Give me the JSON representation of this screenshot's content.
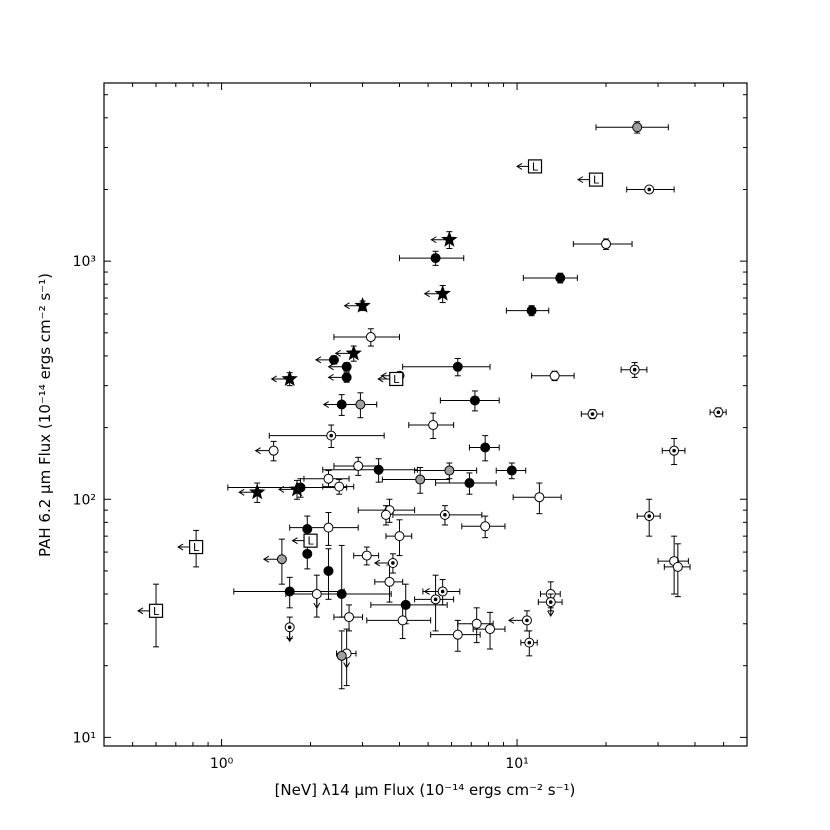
{
  "chart_data": {
    "type": "scatter",
    "xlabel": "[NeV] λ14 μm Flux (10⁻¹⁴ ergs cm⁻² s⁻¹)",
    "ylabel": "PAH 6.2 μm Flux (10⁻¹⁴ ergs cm⁻² s⁻¹)",
    "xscale": "log",
    "yscale": "log",
    "xlim": [
      0.4,
      60
    ],
    "ylim": [
      9.2,
      5600
    ],
    "x_tick_labels": [
      {
        "value": 1,
        "label": "10⁰"
      },
      {
        "value": 10,
        "label": "10¹"
      }
    ],
    "y_tick_labels": [
      {
        "value": 10,
        "label": "10¹"
      },
      {
        "value": 100,
        "label": "10²"
      },
      {
        "value": 1000,
        "label": "10³"
      }
    ],
    "grid": false,
    "legend": "none",
    "series": [
      {
        "marker": "filled-circle",
        "points": [
          {
            "x": 5.3,
            "y": 1030,
            "xerr": [
              1.3,
              1.3
            ],
            "yerr": [
              70,
              70
            ]
          },
          {
            "x": 14.0,
            "y": 850,
            "xerr": [
              3.5,
              2.0
            ],
            "yerr": [
              40,
              40
            ]
          },
          {
            "x": 11.2,
            "y": 620,
            "xerr": [
              2.0,
              1.6
            ],
            "yerr": [
              30,
              30
            ]
          },
          {
            "x": 2.4,
            "y": 385,
            "xerr": [
              0.0,
              0.0
            ],
            "yerr": [
              15,
              15
            ],
            "xlimit": "upper"
          },
          {
            "x": 2.65,
            "y": 360,
            "xerr": [
              0.0,
              0.0
            ],
            "yerr": [
              15,
              15
            ],
            "xlimit": "upper"
          },
          {
            "x": 6.3,
            "y": 360,
            "xerr": [
              2.2,
              1.8
            ],
            "yerr": [
              30,
              30
            ]
          },
          {
            "x": 2.65,
            "y": 325,
            "xerr": [
              0.0,
              0.0
            ],
            "yerr": [
              15,
              15
            ],
            "xlimit": "upper"
          },
          {
            "x": 7.2,
            "y": 260,
            "xerr": [
              1.7,
              1.5
            ],
            "yerr": [
              25,
              25
            ]
          },
          {
            "x": 2.55,
            "y": 250,
            "xerr": [
              0.0,
              0.0
            ],
            "yerr": [
              25,
              25
            ],
            "xlimit": "upper"
          },
          {
            "x": 7.8,
            "y": 165,
            "xerr": [
              0.9,
              0.9
            ],
            "yerr": [
              20,
              20
            ]
          },
          {
            "x": 3.4,
            "y": 133,
            "xerr": [
              1.2,
              1.2
            ],
            "yerr": [
              15,
              15
            ]
          },
          {
            "x": 9.6,
            "y": 132,
            "xerr": [
              1.1,
              1.1
            ],
            "yerr": [
              10,
              10
            ]
          },
          {
            "x": 6.9,
            "y": 117,
            "xerr": [
              1.6,
              1.6
            ],
            "yerr": [
              12,
              12
            ]
          },
          {
            "x": 1.85,
            "y": 112,
            "xerr": [
              0.8,
              0.8
            ],
            "yerr": [
              10,
              10
            ]
          },
          {
            "x": 1.95,
            "y": 75,
            "xerr": [
              0.0,
              0.0
            ],
            "yerr": [
              10,
              10
            ]
          },
          {
            "x": 1.95,
            "y": 59,
            "xerr": [
              0.0,
              0.0
            ],
            "yerr": [
              8,
              8
            ]
          },
          {
            "x": 2.3,
            "y": 50,
            "xerr": [
              0.0,
              0.0
            ],
            "yerr": [
              12,
              12
            ]
          },
          {
            "x": 1.7,
            "y": 41,
            "xerr": [
              0.6,
              0.9
            ],
            "yerr": [
              6,
              6
            ]
          },
          {
            "x": 2.55,
            "y": 40,
            "xerr": [
              0.9,
              1.2
            ],
            "yerr": [
              8,
              24
            ]
          },
          {
            "x": 4.2,
            "y": 36,
            "xerr": [
              1.0,
              1.6
            ],
            "yerr": [
              6,
              8
            ]
          }
        ]
      },
      {
        "marker": "open-circle",
        "points": [
          {
            "x": 20.0,
            "y": 1180,
            "xerr": [
              4.5,
              4.5
            ],
            "yerr": [
              60,
              60
            ]
          },
          {
            "x": 3.2,
            "y": 480,
            "xerr": [
              0.8,
              0.8
            ],
            "yerr": [
              40,
              40
            ]
          },
          {
            "x": 4.0,
            "y": 330,
            "xerr": [
              0.0,
              0.0
            ],
            "yerr": [
              10,
              10
            ],
            "xlimit": "upper"
          },
          {
            "x": 13.4,
            "y": 330,
            "xerr": [
              2.2,
              2.2
            ],
            "yerr": [
              15,
              15
            ]
          },
          {
            "x": 5.2,
            "y": 205,
            "xerr": [
              0.9,
              0.9
            ],
            "yerr": [
              25,
              25
            ]
          },
          {
            "x": 1.5,
            "y": 160,
            "xerr": [
              0.0,
              0.0
            ],
            "yerr": [
              15,
              15
            ],
            "xlimit": "upper"
          },
          {
            "x": 2.9,
            "y": 138,
            "xerr": [
              0.5,
              0.5
            ],
            "yerr": [
              12,
              12
            ]
          },
          {
            "x": 2.3,
            "y": 122,
            "xerr": [
              0.4,
              0.4
            ],
            "yerr": [
              10,
              10
            ]
          },
          {
            "x": 2.5,
            "y": 113,
            "xerr": [
              0.3,
              0.3
            ],
            "yerr": [
              8,
              8
            ]
          },
          {
            "x": 11.9,
            "y": 102,
            "xerr": [
              2.2,
              2.2
            ],
            "yerr": [
              15,
              15
            ]
          },
          {
            "x": 3.7,
            "y": 90,
            "xerr": [
              0.8,
              0.8
            ],
            "yerr": [
              10,
              10
            ]
          },
          {
            "x": 3.6,
            "y": 86,
            "xerr": [
              0.0,
              0.0
            ],
            "yerr": [
              8,
              8
            ]
          },
          {
            "x": 2.3,
            "y": 76,
            "xerr": [
              0.6,
              0.6
            ],
            "yerr": [
              12,
              12
            ]
          },
          {
            "x": 7.8,
            "y": 77,
            "xerr": [
              1.3,
              1.3
            ],
            "yerr": [
              8,
              8
            ]
          },
          {
            "x": 4.0,
            "y": 70,
            "xerr": [
              0.4,
              0.4
            ],
            "yerr": [
              12,
              12
            ]
          },
          {
            "x": 3.1,
            "y": 58,
            "xerr": [
              0.3,
              0.3
            ],
            "yerr": [
              5,
              5
            ]
          },
          {
            "x": 3.7,
            "y": 45,
            "xerr": [
              0.4,
              0.4
            ],
            "yerr": [
              8,
              8
            ]
          },
          {
            "x": 2.1,
            "y": 40,
            "xerr": [
              0.0,
              0.0
            ],
            "yerr": [
              8,
              8
            ],
            "ylimit": "upper"
          },
          {
            "x": 4.1,
            "y": 31,
            "xerr": [
              1.0,
              1.0
            ],
            "yerr": [
              5,
              5
            ]
          },
          {
            "x": 2.7,
            "y": 32,
            "xerr": [
              0.3,
              0.3
            ],
            "yerr": [
              4,
              4
            ]
          },
          {
            "x": 7.3,
            "y": 30,
            "xerr": [
              1.0,
              1.0
            ],
            "yerr": [
              5,
              5
            ]
          },
          {
            "x": 8.1,
            "y": 28.5,
            "xerr": [
              1.0,
              1.0
            ],
            "yerr": [
              5,
              5
            ]
          },
          {
            "x": 6.3,
            "y": 27,
            "xerr": [
              1.2,
              1.2
            ],
            "yerr": [
              4,
              4
            ]
          },
          {
            "x": 2.65,
            "y": 22.5,
            "xerr": [
              0.2,
              0.2
            ],
            "yerr": [
              6,
              6
            ],
            "ylimit": "upper"
          },
          {
            "x": 13.0,
            "y": 40,
            "xerr": [
              1.0,
              1.0
            ],
            "yerr": [
              5,
              5
            ],
            "ylimit": "upper"
          },
          {
            "x": 34.0,
            "y": 55,
            "xerr": [
              4.0,
              4.0
            ],
            "yerr": [
              15,
              15
            ]
          },
          {
            "x": 35.0,
            "y": 52,
            "xerr": [
              3.5,
              3.5
            ],
            "yerr": [
              13,
              13
            ]
          }
        ]
      },
      {
        "marker": "dotted-circle",
        "points": [
          {
            "x": 28.0,
            "y": 2000,
            "xerr": [
              4.5,
              6.0
            ],
            "yerr": [
              60,
              60
            ]
          },
          {
            "x": 25.0,
            "y": 350,
            "xerr": [
              2.5,
              2.5
            ],
            "yerr": [
              25,
              25
            ]
          },
          {
            "x": 18.0,
            "y": 228,
            "xerr": [
              1.5,
              1.5
            ],
            "yerr": [
              10,
              10
            ]
          },
          {
            "x": 48.0,
            "y": 232,
            "xerr": [
              3.0,
              3.0
            ],
            "yerr": [
              10,
              10
            ]
          },
          {
            "x": 34.0,
            "y": 160,
            "xerr": [
              3.0,
              3.0
            ],
            "yerr": [
              20,
              20
            ]
          },
          {
            "x": 2.35,
            "y": 185,
            "xerr": [
              0.9,
              1.2
            ],
            "yerr": [
              20,
              20
            ]
          },
          {
            "x": 28.0,
            "y": 85,
            "xerr": [
              2.5,
              2.5
            ],
            "yerr": [
              15,
              15
            ]
          },
          {
            "x": 5.7,
            "y": 86,
            "xerr": [
              1.9,
              1.9
            ],
            "yerr": [
              8,
              8
            ]
          },
          {
            "x": 3.8,
            "y": 54,
            "xerr": [
              0.0,
              0.0
            ],
            "yerr": [
              5,
              5
            ],
            "xlimit": "upper"
          },
          {
            "x": 5.6,
            "y": 41,
            "xerr": [
              0.8,
              0.8
            ],
            "yerr": [
              5,
              5
            ],
            "xlimit": "upper"
          },
          {
            "x": 5.3,
            "y": 38,
            "xerr": [
              0.8,
              0.8
            ],
            "yerr": [
              10,
              10
            ]
          },
          {
            "x": 1.7,
            "y": 29,
            "xerr": [
              0.0,
              0.0
            ],
            "yerr": [
              3,
              3
            ],
            "ylimit": "upper"
          },
          {
            "x": 10.8,
            "y": 31,
            "xerr": [
              0.0,
              0.0
            ],
            "yerr": [
              3,
              3
            ],
            "xlimit": "upper"
          },
          {
            "x": 11.0,
            "y": 25,
            "xerr": [
              0.7,
              0.7
            ],
            "yerr": [
              3,
              3
            ]
          },
          {
            "x": 13.0,
            "y": 37,
            "xerr": [
              1.2,
              1.2
            ],
            "yerr": [
              3,
              3
            ],
            "ylimit": "upper"
          }
        ]
      },
      {
        "marker": "gray-circle",
        "points": [
          {
            "x": 25.5,
            "y": 3650,
            "xerr": [
              7.0,
              7.0
            ],
            "yerr": [
              200,
              200
            ]
          },
          {
            "x": 2.95,
            "y": 250,
            "xerr": [
              0.4,
              0.4
            ],
            "yerr": [
              30,
              30
            ]
          },
          {
            "x": 4.7,
            "y": 121,
            "xerr": [
              1.2,
              1.2
            ],
            "yerr": [
              15,
              15
            ]
          },
          {
            "x": 5.9,
            "y": 132,
            "xerr": [
              1.4,
              1.4
            ],
            "yerr": [
              10,
              10
            ]
          },
          {
            "x": 1.6,
            "y": 56,
            "xerr": [
              0.0,
              0.0
            ],
            "yerr": [
              12,
              12
            ],
            "xlimit": "upper"
          },
          {
            "x": 2.55,
            "y": 22,
            "xerr": [
              0.0,
              0.0
            ],
            "yerr": [
              6,
              6
            ]
          }
        ]
      },
      {
        "marker": "star",
        "points": [
          {
            "x": 5.9,
            "y": 1230,
            "xerr": [
              0.0,
              0.0
            ],
            "yerr": [
              100,
              100
            ],
            "xlimit": "upper"
          },
          {
            "x": 5.6,
            "y": 730,
            "xerr": [
              0.0,
              0.0
            ],
            "yerr": [
              60,
              60
            ],
            "xlimit": "upper"
          },
          {
            "x": 3.0,
            "y": 650,
            "xerr": [
              0.0,
              0.0
            ],
            "yerr": [
              30,
              30
            ],
            "xlimit": "upper"
          },
          {
            "x": 2.8,
            "y": 410,
            "xerr": [
              0.0,
              0.0
            ],
            "yerr": [
              30,
              30
            ],
            "xlimit": "upper"
          },
          {
            "x": 1.7,
            "y": 320,
            "xerr": [
              0.0,
              0.0
            ],
            "yerr": [
              20,
              20
            ],
            "xlimit": "upper"
          },
          {
            "x": 1.32,
            "y": 107,
            "xerr": [
              0.0,
              0.0
            ],
            "yerr": [
              10,
              10
            ],
            "xlimit": "upper"
          },
          {
            "x": 1.8,
            "y": 110,
            "xerr": [
              0.0,
              0.0
            ],
            "yerr": [
              10,
              10
            ],
            "xlimit": "upper"
          }
        ]
      },
      {
        "marker": "L-square",
        "points": [
          {
            "x": 11.5,
            "y": 2500,
            "xerr": [
              0.0,
              0.0
            ],
            "yerr": [
              0,
              0
            ],
            "xlimit": "upper"
          },
          {
            "x": 18.5,
            "y": 2200,
            "xerr": [
              0.0,
              0.0
            ],
            "yerr": [
              0,
              0
            ],
            "xlimit": "upper"
          },
          {
            "x": 3.9,
            "y": 320,
            "xerr": [
              0.0,
              0.0
            ],
            "yerr": [
              0,
              0
            ],
            "xlimit": "upper"
          },
          {
            "x": 2.0,
            "y": 67,
            "xerr": [
              0.0,
              0.0
            ],
            "yerr": [
              0,
              0
            ],
            "xlimit": "upper"
          },
          {
            "x": 0.82,
            "y": 63,
            "xerr": [
              0.0,
              0.0
            ],
            "yerr": [
              11,
              11
            ],
            "xlimit": "upper"
          },
          {
            "x": 0.6,
            "y": 34,
            "xerr": [
              0.0,
              0.0
            ],
            "yerr": [
              10,
              10
            ],
            "xlimit": "upper"
          }
        ]
      }
    ]
  }
}
